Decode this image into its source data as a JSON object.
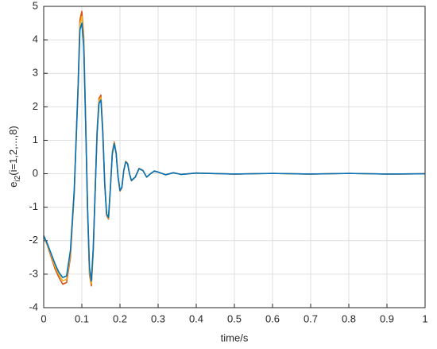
{
  "chart_data": {
    "type": "line",
    "xlabel": "time/s",
    "ylabel": {
      "base": "e",
      "sub": "i2",
      "rest": "(i=1,2,...,8)"
    },
    "x": [
      0,
      0.01,
      0.02,
      0.03,
      0.04,
      0.05,
      0.06,
      0.07,
      0.08,
      0.09,
      0.095,
      0.1,
      0.105,
      0.11,
      0.115,
      0.12,
      0.125,
      0.13,
      0.135,
      0.14,
      0.145,
      0.15,
      0.155,
      0.16,
      0.165,
      0.17,
      0.175,
      0.18,
      0.185,
      0.19,
      0.195,
      0.2,
      0.205,
      0.21,
      0.215,
      0.22,
      0.225,
      0.23,
      0.24,
      0.25,
      0.26,
      0.27,
      0.28,
      0.29,
      0.3,
      0.32,
      0.34,
      0.36,
      0.4,
      0.5,
      0.6,
      0.7,
      0.8,
      0.9,
      1.0
    ],
    "series": [
      {
        "color": "#d95319",
        "values": [
          -1.85,
          -2.15,
          -2.5,
          -2.85,
          -3.1,
          -3.3,
          -3.25,
          -2.5,
          -0.6,
          2.6,
          4.6,
          4.85,
          4.1,
          1.6,
          -1.1,
          -3.0,
          -3.35,
          -2.3,
          -0.5,
          1.3,
          2.25,
          2.35,
          1.3,
          -0.3,
          -1.25,
          -1.35,
          -0.4,
          0.65,
          0.95,
          0.62,
          -0.1,
          -0.52,
          -0.42,
          0.1,
          0.37,
          0.31,
          0,
          -0.21,
          -0.1,
          0.16,
          0.1,
          -0.1,
          0,
          0.08,
          0.05,
          -0.03,
          0.03,
          -0.02,
          0.02,
          -0.01,
          0.01,
          -0.01,
          0.01,
          -0.01,
          0
        ]
      },
      {
        "color": "#edb120",
        "values": [
          -1.85,
          -2.12,
          -2.45,
          -2.78,
          -3.02,
          -3.2,
          -3.15,
          -2.4,
          -0.55,
          2.55,
          4.45,
          4.7,
          3.95,
          1.55,
          -1.05,
          -2.9,
          -3.28,
          -2.25,
          -0.5,
          1.25,
          2.18,
          2.28,
          1.25,
          -0.3,
          -1.22,
          -1.32,
          -0.4,
          0.62,
          0.92,
          0.61,
          -0.1,
          -0.51,
          -0.41,
          0.1,
          0.36,
          0.3,
          0,
          -0.2,
          -0.1,
          0.15,
          0.1,
          -0.1,
          0,
          0.08,
          0.05,
          -0.03,
          0.03,
          -0.02,
          0.02,
          -0.01,
          0.01,
          -0.01,
          0.01,
          -0.01,
          0
        ]
      },
      {
        "color": "#0072bd",
        "values": [
          -1.85,
          -2.1,
          -2.4,
          -2.7,
          -2.95,
          -3.1,
          -3.05,
          -2.3,
          -0.5,
          2.5,
          4.3,
          4.5,
          3.8,
          1.5,
          -1.0,
          -2.8,
          -3.2,
          -2.2,
          -0.5,
          1.2,
          2.1,
          2.2,
          1.2,
          -0.3,
          -1.2,
          -1.3,
          -0.4,
          0.6,
          0.9,
          0.6,
          -0.1,
          -0.5,
          -0.4,
          0.1,
          0.35,
          0.3,
          0,
          -0.2,
          -0.1,
          0.15,
          0.1,
          -0.1,
          0,
          0.08,
          0.05,
          -0.03,
          0.03,
          -0.02,
          0.02,
          -0.01,
          0.01,
          -0.01,
          0.01,
          -0.01,
          0
        ]
      }
    ],
    "xlim": [
      0,
      1
    ],
    "xticks": [
      0,
      0.1,
      0.2,
      0.3,
      0.4,
      0.5,
      0.6,
      0.7,
      0.8,
      0.9,
      1
    ],
    "ylim": [
      -4,
      5
    ],
    "yticks": [
      -4,
      -3,
      -2,
      -1,
      0,
      1,
      2,
      3,
      4,
      5
    ],
    "grid": true
  }
}
